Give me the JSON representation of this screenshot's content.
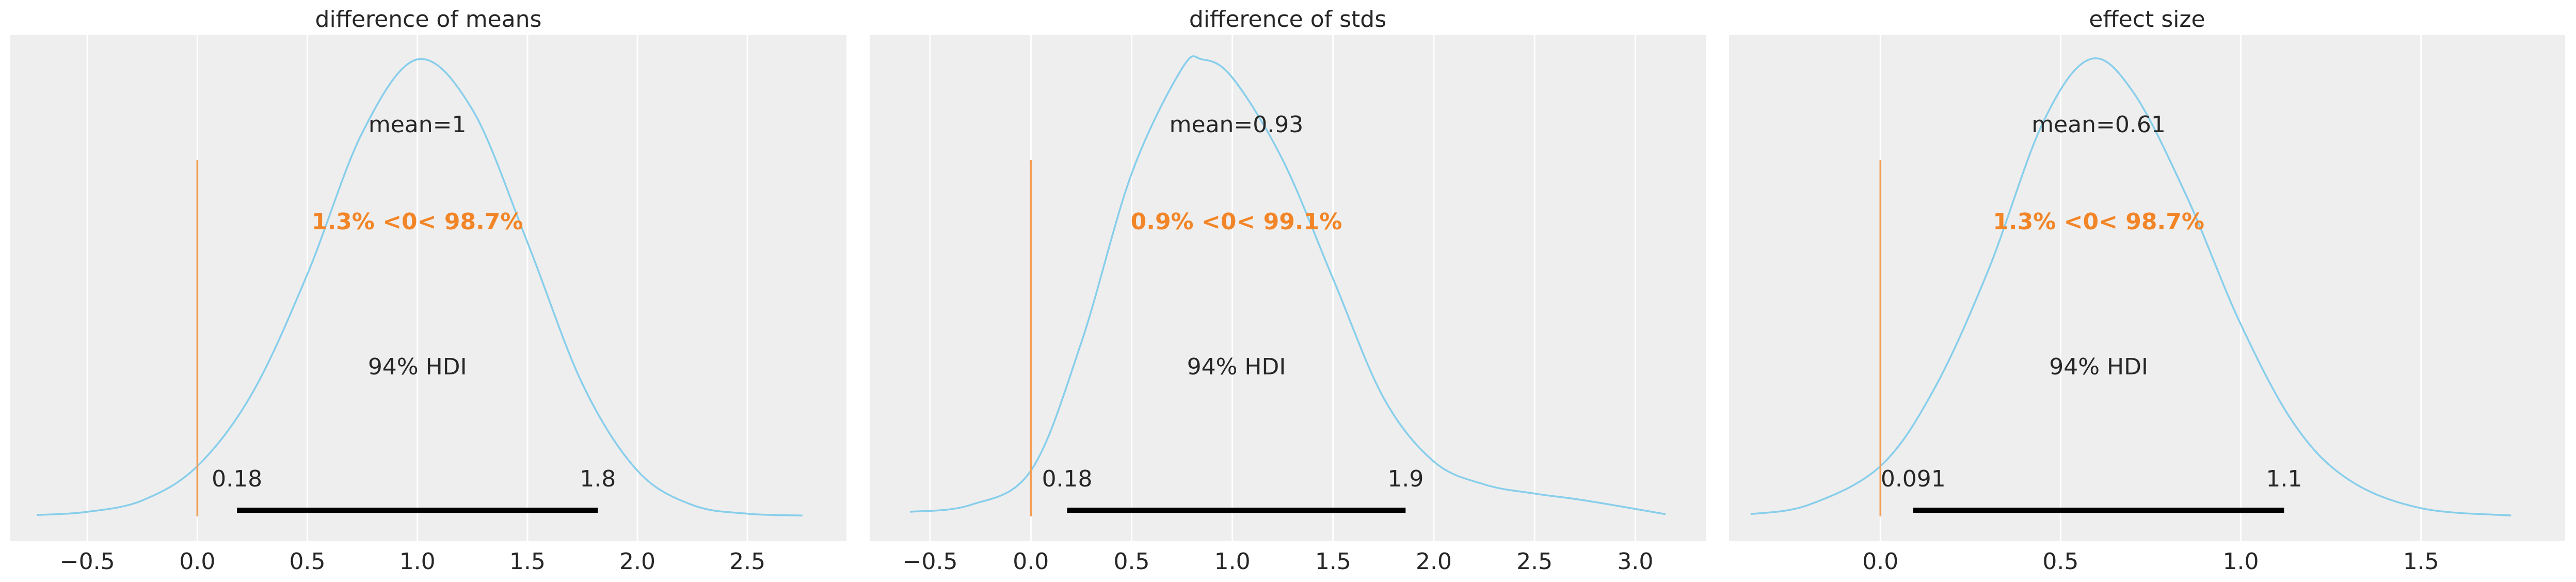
{
  "chart_data": [
    {
      "type": "area",
      "title": "difference of means",
      "xlim": [
        -0.85,
        2.95
      ],
      "x_ticks": [
        -0.5,
        0.0,
        0.5,
        1.0,
        1.5,
        2.0,
        2.5
      ],
      "x_tick_labels": [
        "−0.5",
        "0.0",
        "0.5",
        "1.0",
        "1.5",
        "2.0",
        "2.5"
      ],
      "grid": true,
      "series": [
        {
          "x": [
            -0.73,
            -0.5,
            -0.25,
            0.0,
            0.25,
            0.5,
            0.75,
            1.0,
            1.25,
            1.5,
            1.75,
            2.0,
            2.25,
            2.5,
            2.75
          ],
          "density": [
            0.003,
            0.01,
            0.035,
            0.11,
            0.27,
            0.53,
            0.84,
            1.0,
            0.89,
            0.6,
            0.29,
            0.1,
            0.025,
            0.006,
            0.002
          ]
        }
      ],
      "reference_value": 0,
      "mean_label": "mean=1",
      "ref_label": "1.3% <0< 98.7%",
      "hdi_label": "94% HDI",
      "hdi": [
        0.18,
        1.82
      ],
      "hdi_low_label": "0.18",
      "hdi_high_label": "1.8"
    },
    {
      "type": "area",
      "title": "difference of stds",
      "xlim": [
        -0.8,
        3.35
      ],
      "x_ticks": [
        -0.5,
        0.0,
        0.5,
        1.0,
        1.5,
        2.0,
        2.5,
        3.0
      ],
      "x_tick_labels": [
        "−0.5",
        "0.0",
        "0.5",
        "1.0",
        "1.5",
        "2.0",
        "2.5",
        "3.0"
      ],
      "grid": true,
      "series": [
        {
          "x": [
            -0.6,
            -0.3,
            0.0,
            0.25,
            0.5,
            0.75,
            0.85,
            1.0,
            1.25,
            1.5,
            1.75,
            2.0,
            2.25,
            2.5,
            2.75,
            3.15
          ],
          "density": [
            0.01,
            0.025,
            0.1,
            0.38,
            0.75,
            0.98,
            1.0,
            0.96,
            0.78,
            0.52,
            0.26,
            0.12,
            0.07,
            0.05,
            0.035,
            0.005
          ]
        }
      ],
      "reference_value": 0,
      "mean_label": "mean=0.93",
      "ref_label": "0.9% <0< 99.1%",
      "hdi_label": "94% HDI",
      "hdi": [
        0.18,
        1.86
      ],
      "hdi_low_label": "0.18",
      "hdi_high_label": "1.9"
    },
    {
      "type": "area",
      "title": "effect size",
      "xlim": [
        -0.42,
        1.9
      ],
      "x_ticks": [
        0.0,
        0.5,
        1.0,
        1.5
      ],
      "x_tick_labels": [
        "0.0",
        "0.5",
        "1.0",
        "1.5"
      ],
      "grid": true,
      "series": [
        {
          "x": [
            -0.36,
            -0.2,
            0.0,
            0.15,
            0.3,
            0.45,
            0.58,
            0.7,
            0.85,
            1.0,
            1.15,
            1.3,
            1.5,
            1.75
          ],
          "density": [
            0.005,
            0.025,
            0.11,
            0.28,
            0.54,
            0.86,
            1.0,
            0.93,
            0.7,
            0.42,
            0.2,
            0.08,
            0.018,
            0.002
          ]
        }
      ],
      "reference_value": 0,
      "mean_label": "mean=0.61",
      "ref_label": "1.3% <0< 98.7%",
      "hdi_label": "94% HDI",
      "hdi": [
        0.091,
        1.12
      ],
      "hdi_low_label": "0.091",
      "hdi_high_label": "1.1"
    }
  ],
  "colors": {
    "plot_background": "#eeeeee",
    "grid": "#ffffff",
    "density_line": "#87ceeb",
    "reference_line": "#f39c52",
    "reference_text": "#f28527",
    "hdi_bar": "#000000",
    "text": "#262626"
  }
}
